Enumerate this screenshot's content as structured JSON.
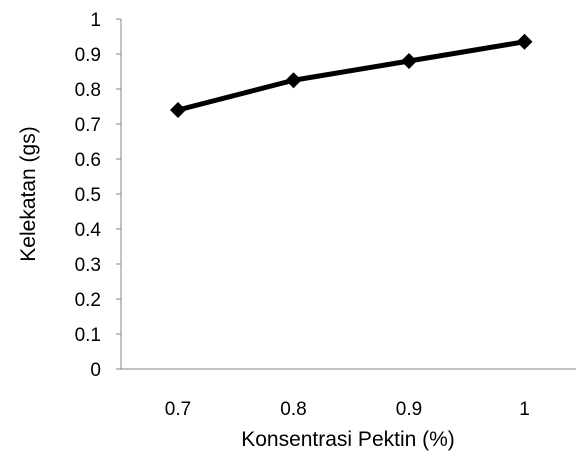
{
  "chart_data": {
    "type": "line",
    "x": [
      0.7,
      0.8,
      0.9,
      1
    ],
    "x_tick_labels": [
      "0.7",
      "0.8",
      "0.9",
      "1"
    ],
    "series": [
      {
        "values": [
          0.74,
          0.825,
          0.88,
          0.935
        ]
      }
    ],
    "xlabel": "Konsentrasi Pektin (%)",
    "ylabel": "Kelekatan (gs)",
    "ylim": [
      0,
      1
    ],
    "y_ticks": [
      0,
      0.1,
      0.2,
      0.3,
      0.4,
      0.5,
      0.6,
      0.7,
      0.8,
      0.9,
      1
    ],
    "y_tick_labels": [
      "0",
      "0.1",
      "0.2",
      "0.3",
      "0.4",
      "0.5",
      "0.6",
      "0.7",
      "0.8",
      "0.9",
      "1"
    ],
    "grid": false,
    "legend": false,
    "marker": "diamond",
    "line_color": "#000000",
    "marker_color": "#000000"
  }
}
